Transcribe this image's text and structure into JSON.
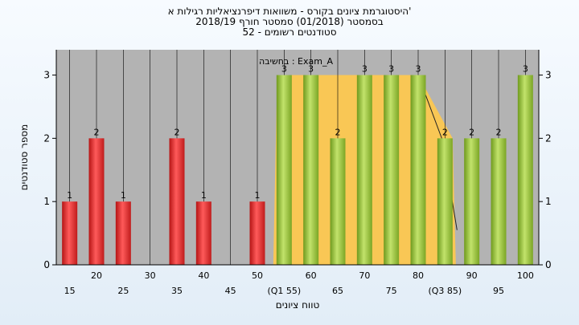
{
  "chart_data": {
    "type": "bar",
    "title_lines": [
      "היסטוגרמת ציונים בקורס - משוואות דיפרנציאליות רגילות א'",
      "בסמסטר  (01/2018)  סמסטר חורף 2018/19",
      "סטודנטים רשומים - 52"
    ],
    "annotation": "בחשיבה : Exam_A",
    "ylabel": "מספר סטודנטים",
    "xlabel": "טווח ציונים",
    "categories": [
      "15",
      "20",
      "25",
      "30",
      "35",
      "40",
      "45",
      "50",
      "(Q1 55)",
      "60",
      "65",
      "70",
      "75",
      "80",
      "(Q3 85)",
      "90",
      "95",
      "100"
    ],
    "values": [
      1,
      2,
      1,
      0,
      2,
      1,
      0,
      1,
      3,
      3,
      2,
      3,
      3,
      3,
      2,
      2,
      2,
      3
    ],
    "value_labels": [
      "1",
      "2",
      "1",
      "",
      "2",
      "1",
      "",
      "1",
      "3",
      "3",
      "2",
      "3",
      "3",
      "3",
      "2",
      "2",
      "2",
      "3"
    ],
    "bar_colors": [
      "#e23a3a",
      "#e23a3a",
      "#e23a3a",
      "#e23a3a",
      "#e23a3a",
      "#e23a3a",
      "#e23a3a",
      "#e23a3a",
      "#9acd32",
      "#9acd32",
      "#9acd32",
      "#9acd32",
      "#9acd32",
      "#9acd32",
      "#9acd32",
      "#9acd32",
      "#9acd32",
      "#9acd32"
    ],
    "ylim": [
      0,
      3.4
    ],
    "yticks": [
      0,
      1,
      2,
      3
    ],
    "grid": "vertical",
    "iqr_band": {
      "from": "(Q1 55)",
      "to": "(Q3 85)",
      "color": "#ffc94d"
    },
    "plot_background": "#b3b3b3"
  }
}
